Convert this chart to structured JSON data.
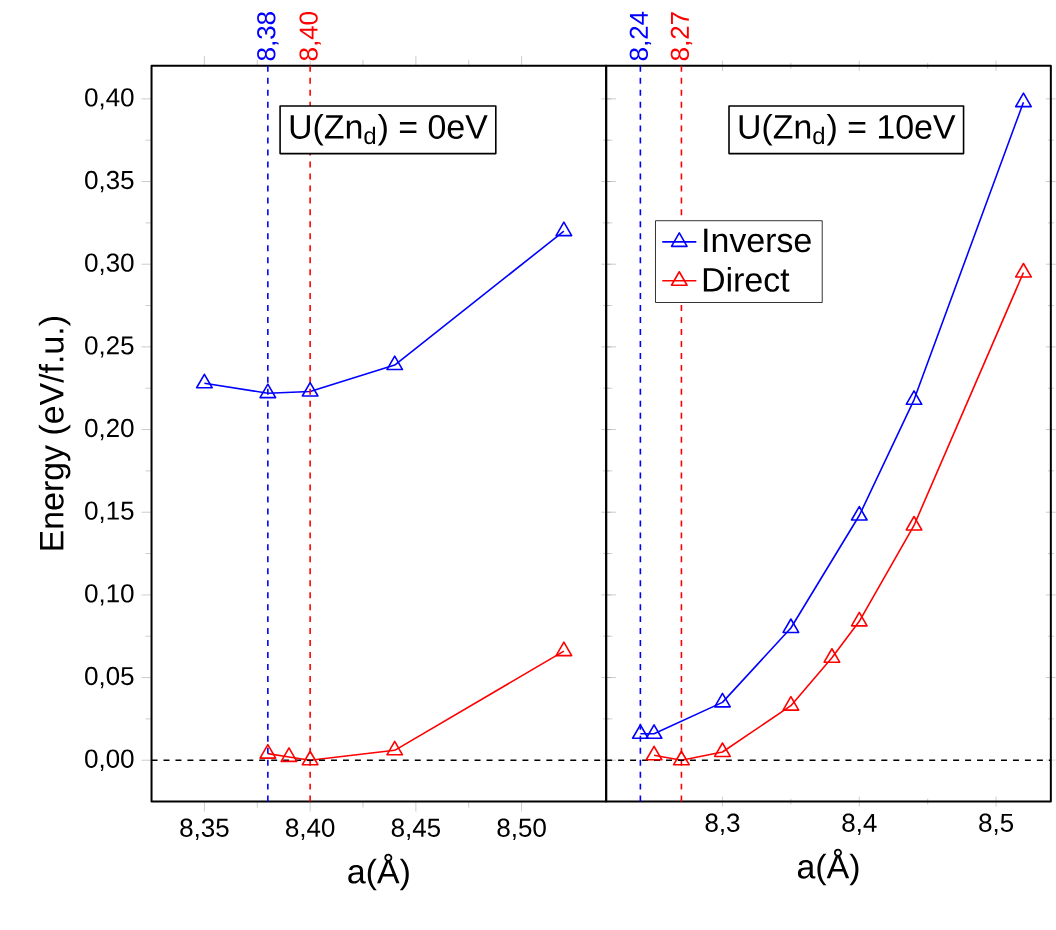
{
  "chart_data": [
    {
      "type": "line",
      "xlabel": "a(Å)",
      "ylabel": "Energy (eV/f.u.)",
      "annotations": [
        "U(Zn$_{d}$) = 0eV"
      ],
      "xlim": [
        8.325,
        8.54
      ],
      "ylim": [
        -0.025,
        0.42
      ],
      "xticks": [
        {
          "value": 8.35,
          "label": "8,35"
        },
        {
          "value": 8.4,
          "label": "8,40"
        },
        {
          "value": 8.45,
          "label": "8,45"
        },
        {
          "value": 8.5,
          "label": "8,50"
        }
      ],
      "yticks": [
        {
          "value": 0,
          "label": "0,00"
        },
        {
          "value": 0.05,
          "label": "0,05"
        },
        {
          "value": 0.1,
          "label": "0,10"
        },
        {
          "value": 0.15,
          "label": "0,15"
        },
        {
          "value": 0.2,
          "label": "0,20"
        },
        {
          "value": 0.25,
          "label": "0,25"
        },
        {
          "value": 0.3,
          "label": "0,30"
        },
        {
          "value": 0.35,
          "label": "0,35"
        },
        {
          "value": 0.4,
          "label": "0,40"
        }
      ],
      "marker": "triangle",
      "line_style": "solid",
      "series": [
        {
          "color": "#0000ff",
          "x": [
            8.35,
            8.38,
            8.4,
            8.44,
            8.52
          ],
          "values": [
            0.228,
            0.222,
            0.223,
            0.239,
            0.32
          ]
        },
        {
          "color": "#ff0000",
          "x": [
            8.38,
            8.39,
            8.4,
            8.44,
            8.52
          ],
          "values": [
            0.004,
            0.002,
            0.0,
            0.006,
            0.066
          ]
        }
      ],
      "ref_lines": [
        {
          "axis": "x",
          "value": 8.38,
          "label": "8,38",
          "color": "#0000ff",
          "line_style": "dashed"
        },
        {
          "axis": "x",
          "value": 8.4,
          "label": "8,40",
          "color": "#ff0000",
          "line_style": "dashed"
        },
        {
          "axis": "y",
          "value": 0,
          "color": "#000000",
          "line_style": "dashed"
        }
      ]
    },
    {
      "type": "line",
      "xlabel": "a(Å)",
      "annotations": [
        "U(Zn$_{d}$) = 10eV"
      ],
      "xlim": [
        8.215,
        8.54
      ],
      "ylim": [
        -0.025,
        0.42
      ],
      "xticks": [
        {
          "value": 8.3,
          "label": "8,3"
        },
        {
          "value": 8.4,
          "label": "8,4"
        },
        {
          "value": 8.5,
          "label": "8,5"
        }
      ],
      "yticks": [
        0,
        0.05,
        0.1,
        0.15,
        0.2,
        0.25,
        0.3,
        0.35,
        0.4
      ],
      "tick_labels": "x",
      "marker": "triangle",
      "line_style": "solid",
      "legend": "top left",
      "series": [
        {
          "name": "Inverse",
          "color": "#0000ff",
          "x": [
            8.24,
            8.25,
            8.3,
            8.35,
            8.4,
            8.44,
            8.52
          ],
          "values": [
            0.016,
            0.016,
            0.035,
            0.08,
            0.148,
            0.218,
            0.398
          ]
        },
        {
          "name": "Direct",
          "color": "#ff0000",
          "x": [
            8.25,
            8.27,
            8.3,
            8.35,
            8.38,
            8.4,
            8.44,
            8.52
          ],
          "values": [
            0.003,
            0.0,
            0.005,
            0.033,
            0.062,
            0.084,
            0.142,
            0.295
          ]
        }
      ],
      "ref_lines": [
        {
          "axis": "x",
          "value": 8.24,
          "label": "8,24",
          "color": "#0000ff",
          "line_style": "dashed"
        },
        {
          "axis": "x",
          "value": 8.27,
          "label": "8,27",
          "color": "#ff0000",
          "line_style": "dashed"
        },
        {
          "axis": "y",
          "value": 0,
          "color": "#000000",
          "line_style": "dashed"
        }
      ]
    }
  ]
}
